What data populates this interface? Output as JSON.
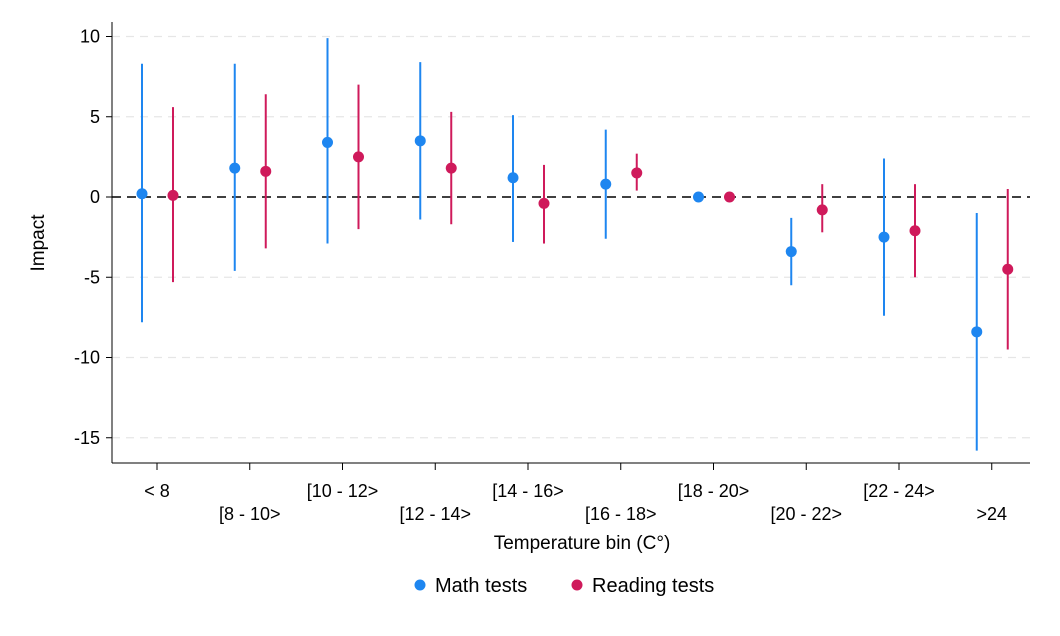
{
  "chart_data": {
    "type": "scatter",
    "title": "",
    "xlabel": "Temperature bin (C°)",
    "ylabel": "Impact",
    "ylim": [
      -16.5,
      10.5
    ],
    "yticks": [
      10,
      5,
      0,
      -5,
      -10,
      -15
    ],
    "reference_line": 0,
    "grid": true,
    "legend_placement": "bottom-center",
    "categories": [
      "< 8",
      "[8 - 10>",
      "[10 - 12>",
      "[12 - 14>",
      "[14 - 16>",
      "[16 - 18>",
      "[18 - 20>",
      "[20 - 22>",
      "[22 - 24>",
      ">24"
    ],
    "series": [
      {
        "name": "Math tests",
        "color": "#1e86f0",
        "values": [
          0.2,
          1.8,
          3.4,
          3.5,
          1.2,
          0.8,
          0,
          -3.4,
          -2.5,
          -8.4
        ],
        "ci_low": [
          -7.8,
          -4.6,
          -2.9,
          -1.4,
          -2.8,
          -2.6,
          0,
          -5.5,
          -7.4,
          -15.8
        ],
        "ci_high": [
          8.3,
          8.3,
          9.9,
          8.4,
          5.1,
          4.2,
          0,
          -1.3,
          2.4,
          -1.0
        ]
      },
      {
        "name": "Reading tests",
        "color": "#cf1a5b",
        "values": [
          0.1,
          1.6,
          2.5,
          1.8,
          -0.4,
          1.5,
          0,
          -0.8,
          -2.1,
          -4.5
        ],
        "ci_low": [
          -5.3,
          -3.2,
          -2.0,
          -1.7,
          -2.9,
          0.4,
          0,
          -2.2,
          -5.0,
          -9.5
        ],
        "ci_high": [
          5.6,
          6.4,
          7.0,
          5.3,
          2.0,
          2.7,
          0,
          0.8,
          0.8,
          0.5
        ]
      }
    ]
  }
}
